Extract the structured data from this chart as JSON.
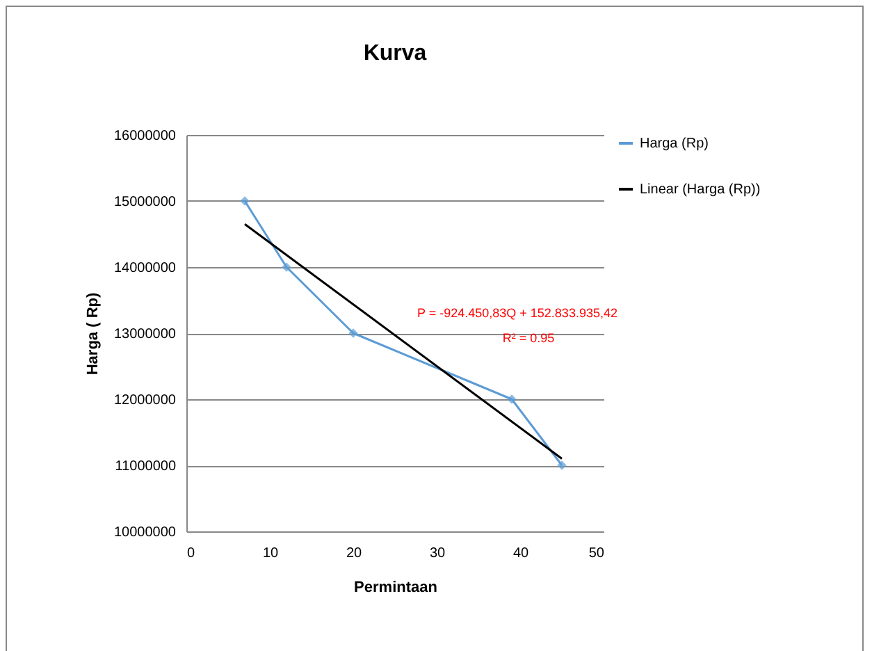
{
  "chart_data": {
    "type": "line",
    "title": "Kurva",
    "xlabel": "Permintaan",
    "ylabel": "Harga ( Rp)",
    "xlim": [
      0,
      50
    ],
    "xticks": [
      0,
      10,
      20,
      30,
      40,
      50
    ],
    "ylim": [
      10000000,
      16000000
    ],
    "yticks": [
      10000000,
      11000000,
      12000000,
      13000000,
      14000000,
      15000000,
      16000000
    ],
    "grid": "y",
    "legend": "right",
    "series": [
      {
        "name": "Harga (Rp)",
        "color": "#5b9bd5",
        "marker": "diamond",
        "x": [
          7,
          12,
          20,
          39,
          45
        ],
        "values": [
          15000000,
          14000000,
          13000000,
          12000000,
          11000000
        ]
      },
      {
        "name": "Linear (Harga (Rp))",
        "type": "line",
        "color": "#000000",
        "marker": "none",
        "x": [
          7,
          45
        ],
        "values": [
          14650000,
          11100000
        ]
      }
    ],
    "annotations": [
      "P = -924.450,83Q + 152.833.935,42",
      "R² = 0.95"
    ]
  }
}
